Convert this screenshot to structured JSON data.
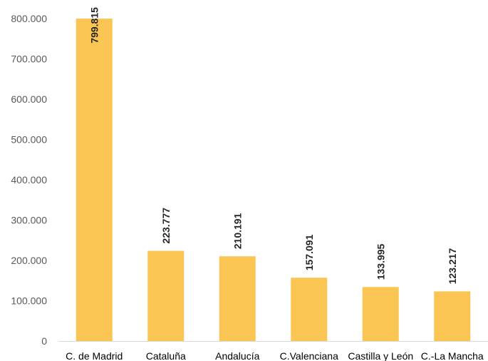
{
  "chart_data": {
    "type": "bar",
    "categories": [
      "C. de Madrid",
      "Cataluña",
      "Andalucía",
      "C.Valenciana",
      "Castilla y León",
      "C.-La Mancha"
    ],
    "values": [
      799815,
      223777,
      210191,
      157091,
      133995,
      123217
    ],
    "value_labels": [
      "799.815",
      "223.777",
      "210.191",
      "157.091",
      "133.995",
      "123.217"
    ],
    "ylim": [
      0,
      800000
    ],
    "y_ticks": [
      0,
      100000,
      200000,
      300000,
      400000,
      500000,
      600000,
      700000,
      800000
    ],
    "y_tick_labels": [
      "0",
      "100.000",
      "200.000",
      "300.000",
      "400.000",
      "500.000",
      "600.000",
      "700.000",
      "800.000"
    ],
    "title": "",
    "xlabel": "",
    "ylabel": "",
    "grid": false,
    "legend": "none",
    "bar_color": "#FAC553",
    "axis_color": "#D9D9D9"
  }
}
